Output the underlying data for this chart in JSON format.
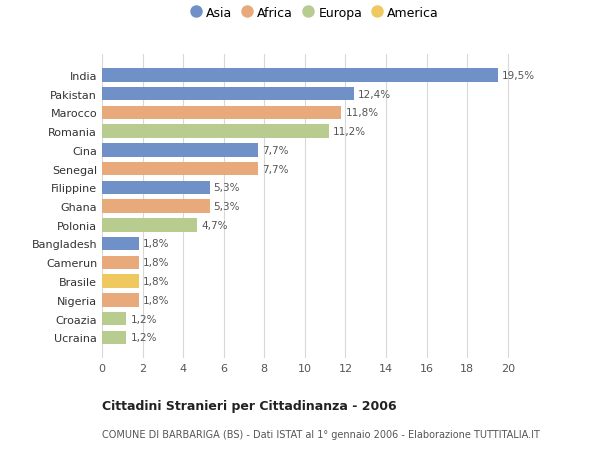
{
  "countries": [
    "India",
    "Pakistan",
    "Marocco",
    "Romania",
    "Cina",
    "Senegal",
    "Filippine",
    "Ghana",
    "Polonia",
    "Bangladesh",
    "Camerun",
    "Brasile",
    "Nigeria",
    "Croazia",
    "Ucraina"
  ],
  "values": [
    19.5,
    12.4,
    11.8,
    11.2,
    7.7,
    7.7,
    5.3,
    5.3,
    4.7,
    1.8,
    1.8,
    1.8,
    1.8,
    1.2,
    1.2
  ],
  "labels": [
    "19,5%",
    "12,4%",
    "11,8%",
    "11,2%",
    "7,7%",
    "7,7%",
    "5,3%",
    "5,3%",
    "4,7%",
    "1,8%",
    "1,8%",
    "1,8%",
    "1,8%",
    "1,2%",
    "1,2%"
  ],
  "continents": [
    "Asia",
    "Asia",
    "Africa",
    "Europa",
    "Asia",
    "Africa",
    "Asia",
    "Africa",
    "Europa",
    "Asia",
    "Africa",
    "America",
    "Africa",
    "Europa",
    "Europa"
  ],
  "colors": {
    "Asia": "#7090c8",
    "Africa": "#e8aa7a",
    "Europa": "#b8cc90",
    "America": "#f0c860"
  },
  "legend_order": [
    "Asia",
    "Africa",
    "Europa",
    "America"
  ],
  "title": "Cittadini Stranieri per Cittadinanza - 2006",
  "subtitle": "COMUNE DI BARBARIGA (BS) - Dati ISTAT al 1° gennaio 2006 - Elaborazione TUTTITALIA.IT",
  "xlim": [
    0,
    21
  ],
  "xticks": [
    0,
    2,
    4,
    6,
    8,
    10,
    12,
    14,
    16,
    18,
    20
  ],
  "background_color": "#ffffff",
  "grid_color": "#d8d8d8"
}
